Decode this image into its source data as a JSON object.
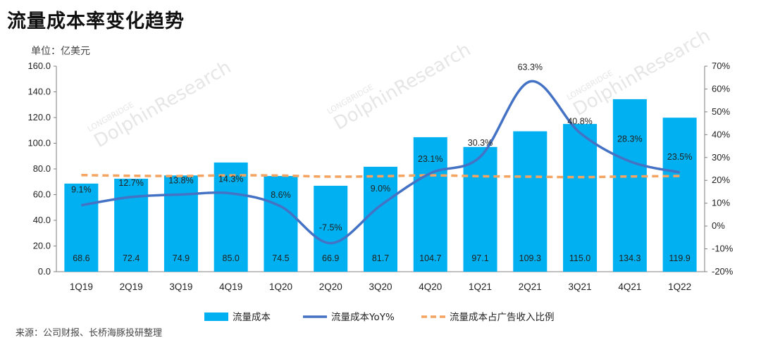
{
  "title": "流量成本率变化趋势",
  "unit_label": "单位：亿美元",
  "source_label": "来源：公司财报、长桥海豚投研整理",
  "watermark": {
    "small": "LONGBRIDGE",
    "big": "DolphinResearch"
  },
  "colors": {
    "bar": "#00b0f0",
    "yoy_line": "#4472c4",
    "ratio_line": "#f4a460"
  },
  "chart_data": {
    "type": "bar",
    "categories": [
      "1Q19",
      "2Q19",
      "3Q19",
      "4Q19",
      "1Q20",
      "2Q20",
      "3Q20",
      "4Q20",
      "1Q21",
      "2Q21",
      "3Q21",
      "4Q21",
      "1Q22"
    ],
    "ylim_left": [
      0,
      160
    ],
    "yticks_left": [
      "0.0",
      "20.0",
      "40.0",
      "60.0",
      "80.0",
      "100.0",
      "120.0",
      "140.0",
      "160.0"
    ],
    "ylim_right": [
      -20,
      70
    ],
    "yticks_right": [
      "-20%",
      "-10%",
      "0%",
      "10%",
      "20%",
      "30%",
      "40%",
      "50%",
      "60%",
      "70%"
    ],
    "legend_position": "bottom",
    "series": [
      {
        "name": "流量成本",
        "type": "bar",
        "values": [
          68.6,
          72.4,
          74.9,
          85.0,
          74.5,
          66.9,
          81.7,
          104.7,
          97.1,
          109.3,
          115.0,
          134.3,
          119.9
        ],
        "labels": [
          "68.6",
          "72.4",
          "74.9",
          "85.0",
          "74.5",
          "66.9",
          "81.7",
          "104.7",
          "97.1",
          "109.3",
          "115.0",
          "134.3",
          "119.9"
        ]
      },
      {
        "name": "流量成本YoY%",
        "type": "line",
        "axis": "right",
        "values": [
          9.1,
          12.7,
          13.8,
          14.3,
          8.6,
          -7.5,
          9.0,
          23.1,
          30.3,
          63.3,
          40.8,
          28.3,
          23.5
        ],
        "labels": [
          "9.1%",
          "12.7%",
          "13.8%",
          "14.3%",
          "8.6%",
          "-7.5%",
          "9.0%",
          "23.1%",
          "30.3%",
          "63.3%",
          "40.8%",
          "28.3%",
          "23.5%"
        ]
      },
      {
        "name": "流量成本占广告收入比例",
        "type": "line",
        "style": "dashed",
        "axis": "right",
        "values": [
          22.3,
          22.0,
          21.9,
          22.2,
          22.1,
          21.6,
          21.8,
          22.2,
          21.8,
          21.6,
          21.4,
          21.7,
          21.9
        ]
      }
    ]
  }
}
